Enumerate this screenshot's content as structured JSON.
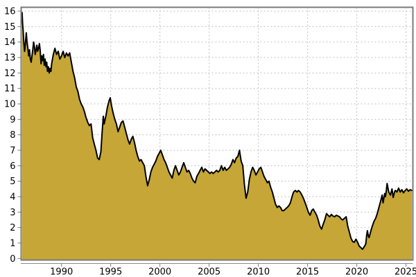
{
  "chart_data": {
    "type": "area",
    "title": "",
    "xlabel": "",
    "ylabel": "",
    "grid": true,
    "legend": "none",
    "xlim": [
      1985.9,
      2025.7
    ],
    "ylim": [
      -0.1,
      16.25
    ],
    "x_axis": {
      "ticks": [
        1990,
        1995,
        2000,
        2005,
        2010,
        2015,
        2020,
        2025
      ],
      "labels": [
        "1990",
        "1995",
        "2000",
        "2005",
        "2010",
        "2015",
        "2020",
        "2025"
      ]
    },
    "y_axis": {
      "ticks": [
        0,
        1,
        2,
        3,
        4,
        5,
        6,
        7,
        8,
        9,
        10,
        11,
        12,
        13,
        14,
        15,
        16
      ],
      "labels": [
        "0",
        "1",
        "2",
        "3",
        "4",
        "5",
        "6",
        "7",
        "8",
        "9",
        "10",
        "11",
        "12",
        "13",
        "14",
        "15",
        "16"
      ]
    },
    "colors": {
      "fill": "#C5A636",
      "line": "#000000",
      "grid": "#BFBFBF",
      "frame": "#7A7A7A",
      "background": "#FFFFFF",
      "tick_text": "#000000"
    },
    "series": [
      {
        "name": "value",
        "points": [
          [
            1986.0,
            15.9
          ],
          [
            1986.05,
            15.2
          ],
          [
            1986.1,
            14.8
          ],
          [
            1986.17,
            14.0
          ],
          [
            1986.25,
            13.4
          ],
          [
            1986.33,
            13.9
          ],
          [
            1986.42,
            14.6
          ],
          [
            1986.5,
            14.0
          ],
          [
            1986.58,
            13.6
          ],
          [
            1986.67,
            13.1
          ],
          [
            1986.75,
            13.5
          ],
          [
            1986.83,
            12.9
          ],
          [
            1986.92,
            12.7
          ],
          [
            1987.0,
            13.1
          ],
          [
            1987.08,
            13.5
          ],
          [
            1987.17,
            14.0
          ],
          [
            1987.25,
            13.7
          ],
          [
            1987.33,
            13.2
          ],
          [
            1987.42,
            13.5
          ],
          [
            1987.5,
            13.8
          ],
          [
            1987.58,
            13.4
          ],
          [
            1987.67,
            13.6
          ],
          [
            1987.75,
            13.9
          ],
          [
            1987.83,
            13.5
          ],
          [
            1987.92,
            12.6
          ],
          [
            1988.0,
            13.1
          ],
          [
            1988.08,
            12.8
          ],
          [
            1988.17,
            13.2
          ],
          [
            1988.25,
            12.5
          ],
          [
            1988.33,
            12.9
          ],
          [
            1988.42,
            12.4
          ],
          [
            1988.5,
            12.7
          ],
          [
            1988.58,
            12.1
          ],
          [
            1988.67,
            12.4
          ],
          [
            1988.75,
            12.0
          ],
          [
            1988.83,
            12.3
          ],
          [
            1988.92,
            12.1
          ],
          [
            1989.0,
            12.6
          ],
          [
            1989.17,
            13.2
          ],
          [
            1989.33,
            13.6
          ],
          [
            1989.5,
            13.2
          ],
          [
            1989.67,
            13.4
          ],
          [
            1989.83,
            12.9
          ],
          [
            1990.0,
            13.1
          ],
          [
            1990.17,
            13.4
          ],
          [
            1990.33,
            13.0
          ],
          [
            1990.5,
            13.3
          ],
          [
            1990.67,
            13.1
          ],
          [
            1990.83,
            13.3
          ],
          [
            1991.0,
            12.7
          ],
          [
            1991.17,
            12.1
          ],
          [
            1991.33,
            11.7
          ],
          [
            1991.5,
            11.1
          ],
          [
            1991.67,
            10.8
          ],
          [
            1991.83,
            10.3
          ],
          [
            1992.0,
            10.0
          ],
          [
            1992.17,
            9.8
          ],
          [
            1992.33,
            9.5
          ],
          [
            1992.5,
            9.1
          ],
          [
            1992.67,
            8.8
          ],
          [
            1992.83,
            8.6
          ],
          [
            1993.0,
            8.7
          ],
          [
            1993.17,
            7.8
          ],
          [
            1993.33,
            7.4
          ],
          [
            1993.5,
            7.0
          ],
          [
            1993.67,
            6.5
          ],
          [
            1993.83,
            6.4
          ],
          [
            1994.0,
            6.9
          ],
          [
            1994.12,
            8.1
          ],
          [
            1994.25,
            9.2
          ],
          [
            1994.33,
            8.7
          ],
          [
            1994.5,
            9.2
          ],
          [
            1994.67,
            9.8
          ],
          [
            1994.83,
            10.2
          ],
          [
            1994.95,
            10.4
          ],
          [
            1995.08,
            9.9
          ],
          [
            1995.25,
            9.4
          ],
          [
            1995.42,
            9.0
          ],
          [
            1995.58,
            8.7
          ],
          [
            1995.75,
            8.2
          ],
          [
            1995.92,
            8.5
          ],
          [
            1996.08,
            8.8
          ],
          [
            1996.25,
            8.9
          ],
          [
            1996.42,
            8.5
          ],
          [
            1996.58,
            8.1
          ],
          [
            1996.75,
            7.7
          ],
          [
            1996.92,
            7.4
          ],
          [
            1997.08,
            7.7
          ],
          [
            1997.25,
            7.9
          ],
          [
            1997.42,
            7.5
          ],
          [
            1997.58,
            7.0
          ],
          [
            1997.75,
            6.6
          ],
          [
            1997.92,
            6.3
          ],
          [
            1998.08,
            6.4
          ],
          [
            1998.25,
            6.2
          ],
          [
            1998.42,
            6.0
          ],
          [
            1998.58,
            5.3
          ],
          [
            1998.75,
            4.7
          ],
          [
            1998.92,
            5.1
          ],
          [
            1999.08,
            5.6
          ],
          [
            1999.25,
            5.9
          ],
          [
            1999.42,
            6.1
          ],
          [
            1999.58,
            6.3
          ],
          [
            1999.75,
            6.6
          ],
          [
            1999.92,
            6.8
          ],
          [
            2000.08,
            7.0
          ],
          [
            2000.25,
            6.7
          ],
          [
            2000.42,
            6.4
          ],
          [
            2000.58,
            6.2
          ],
          [
            2000.75,
            5.9
          ],
          [
            2000.92,
            5.6
          ],
          [
            2001.08,
            5.4
          ],
          [
            2001.25,
            5.2
          ],
          [
            2001.42,
            5.7
          ],
          [
            2001.58,
            6.0
          ],
          [
            2001.75,
            5.7
          ],
          [
            2001.92,
            5.4
          ],
          [
            2002.08,
            5.6
          ],
          [
            2002.25,
            5.9
          ],
          [
            2002.42,
            6.2
          ],
          [
            2002.58,
            5.9
          ],
          [
            2002.75,
            5.6
          ],
          [
            2002.92,
            5.7
          ],
          [
            2003.08,
            5.5
          ],
          [
            2003.25,
            5.2
          ],
          [
            2003.42,
            5.0
          ],
          [
            2003.58,
            4.9
          ],
          [
            2003.75,
            5.3
          ],
          [
            2003.92,
            5.5
          ],
          [
            2004.08,
            5.7
          ],
          [
            2004.25,
            5.9
          ],
          [
            2004.42,
            5.6
          ],
          [
            2004.58,
            5.8
          ],
          [
            2004.75,
            5.7
          ],
          [
            2004.92,
            5.6
          ],
          [
            2005.08,
            5.5
          ],
          [
            2005.25,
            5.6
          ],
          [
            2005.42,
            5.5
          ],
          [
            2005.58,
            5.6
          ],
          [
            2005.75,
            5.7
          ],
          [
            2005.92,
            5.6
          ],
          [
            2006.08,
            5.7
          ],
          [
            2006.25,
            6.0
          ],
          [
            2006.42,
            5.7
          ],
          [
            2006.58,
            5.9
          ],
          [
            2006.75,
            5.7
          ],
          [
            2006.92,
            5.8
          ],
          [
            2007.08,
            5.9
          ],
          [
            2007.25,
            6.1
          ],
          [
            2007.42,
            6.4
          ],
          [
            2007.58,
            6.2
          ],
          [
            2007.75,
            6.5
          ],
          [
            2007.92,
            6.6
          ],
          [
            2008.08,
            7.0
          ],
          [
            2008.25,
            6.3
          ],
          [
            2008.42,
            6.0
          ],
          [
            2008.58,
            4.8
          ],
          [
            2008.75,
            3.9
          ],
          [
            2008.92,
            4.3
          ],
          [
            2009.08,
            5.1
          ],
          [
            2009.25,
            5.6
          ],
          [
            2009.42,
            5.9
          ],
          [
            2009.58,
            5.7
          ],
          [
            2009.75,
            5.4
          ],
          [
            2009.92,
            5.6
          ],
          [
            2010.08,
            5.8
          ],
          [
            2010.25,
            5.9
          ],
          [
            2010.42,
            5.6
          ],
          [
            2010.58,
            5.3
          ],
          [
            2010.75,
            5.1
          ],
          [
            2010.92,
            4.9
          ],
          [
            2011.08,
            5.0
          ],
          [
            2011.25,
            4.6
          ],
          [
            2011.42,
            4.3
          ],
          [
            2011.58,
            3.9
          ],
          [
            2011.75,
            3.5
          ],
          [
            2011.92,
            3.3
          ],
          [
            2012.08,
            3.4
          ],
          [
            2012.25,
            3.3
          ],
          [
            2012.42,
            3.1
          ],
          [
            2012.58,
            3.1
          ],
          [
            2012.75,
            3.2
          ],
          [
            2012.92,
            3.3
          ],
          [
            2013.08,
            3.4
          ],
          [
            2013.25,
            3.6
          ],
          [
            2013.42,
            4.0
          ],
          [
            2013.58,
            4.3
          ],
          [
            2013.75,
            4.4
          ],
          [
            2013.92,
            4.3
          ],
          [
            2014.08,
            4.4
          ],
          [
            2014.25,
            4.3
          ],
          [
            2014.42,
            4.1
          ],
          [
            2014.58,
            3.9
          ],
          [
            2014.75,
            3.6
          ],
          [
            2014.92,
            3.3
          ],
          [
            2015.08,
            3.0
          ],
          [
            2015.25,
            2.8
          ],
          [
            2015.42,
            3.1
          ],
          [
            2015.58,
            3.2
          ],
          [
            2015.75,
            3.0
          ],
          [
            2015.92,
            2.8
          ],
          [
            2016.08,
            2.5
          ],
          [
            2016.25,
            2.1
          ],
          [
            2016.42,
            1.9
          ],
          [
            2016.58,
            2.2
          ],
          [
            2016.75,
            2.5
          ],
          [
            2016.92,
            2.9
          ],
          [
            2017.08,
            2.8
          ],
          [
            2017.25,
            2.7
          ],
          [
            2017.42,
            2.85
          ],
          [
            2017.58,
            2.75
          ],
          [
            2017.75,
            2.7
          ],
          [
            2017.92,
            2.8
          ],
          [
            2018.08,
            2.75
          ],
          [
            2018.25,
            2.7
          ],
          [
            2018.42,
            2.55
          ],
          [
            2018.58,
            2.5
          ],
          [
            2018.75,
            2.6
          ],
          [
            2018.92,
            2.7
          ],
          [
            2019.08,
            2.1
          ],
          [
            2019.25,
            1.7
          ],
          [
            2019.42,
            1.3
          ],
          [
            2019.58,
            1.1
          ],
          [
            2019.75,
            1.05
          ],
          [
            2019.92,
            1.25
          ],
          [
            2020.08,
            1.05
          ],
          [
            2020.25,
            0.8
          ],
          [
            2020.42,
            0.7
          ],
          [
            2020.58,
            0.6
          ],
          [
            2020.75,
            0.75
          ],
          [
            2020.92,
            0.95
          ],
          [
            2021.0,
            1.5
          ],
          [
            2021.08,
            1.8
          ],
          [
            2021.17,
            1.45
          ],
          [
            2021.25,
            1.35
          ],
          [
            2021.42,
            1.75
          ],
          [
            2021.58,
            2.1
          ],
          [
            2021.75,
            2.4
          ],
          [
            2021.92,
            2.6
          ],
          [
            2022.08,
            2.9
          ],
          [
            2022.25,
            3.3
          ],
          [
            2022.42,
            3.7
          ],
          [
            2022.58,
            4.1
          ],
          [
            2022.67,
            3.6
          ],
          [
            2022.83,
            4.2
          ],
          [
            2022.92,
            4.0
          ],
          [
            2023.0,
            4.4
          ],
          [
            2023.08,
            4.85
          ],
          [
            2023.25,
            4.3
          ],
          [
            2023.42,
            4.1
          ],
          [
            2023.58,
            4.5
          ],
          [
            2023.7,
            3.95
          ],
          [
            2023.83,
            4.3
          ],
          [
            2023.92,
            4.4
          ],
          [
            2024.08,
            4.3
          ],
          [
            2024.25,
            4.55
          ],
          [
            2024.42,
            4.3
          ],
          [
            2024.58,
            4.45
          ],
          [
            2024.75,
            4.25
          ],
          [
            2024.92,
            4.4
          ],
          [
            2025.08,
            4.5
          ],
          [
            2025.25,
            4.35
          ],
          [
            2025.42,
            4.45
          ],
          [
            2025.6,
            4.4
          ]
        ]
      }
    ]
  }
}
